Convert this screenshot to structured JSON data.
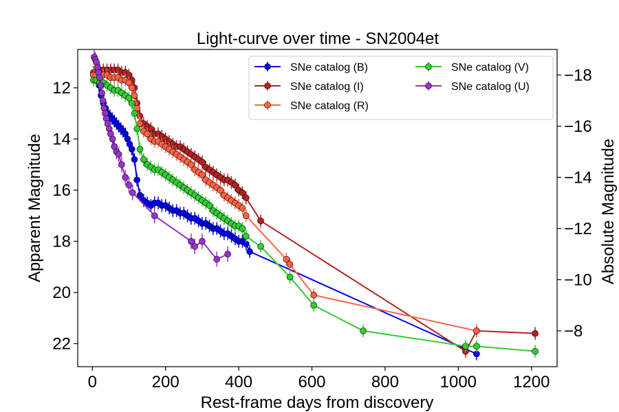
{
  "chart_data": {
    "type": "scatter",
    "title": "Light-curve over time - SN2004et",
    "xlabel": "Rest-frame days from discovery",
    "ylabel": "Apparent Magnitude",
    "y2label": "Absolute Magnitude",
    "xlim": [
      -40,
      1270
    ],
    "ylim": [
      22.9,
      10.5
    ],
    "y2lim": [
      -19.0,
      -6.6
    ],
    "y_inverted": true,
    "x_ticks": [
      0,
      200,
      400,
      600,
      800,
      1000,
      1200
    ],
    "y_ticks": [
      12,
      14,
      16,
      18,
      20,
      22
    ],
    "y2_ticks": [
      -18,
      -16,
      -14,
      -12,
      -10,
      -8
    ],
    "grid": false,
    "legend_position": "top-right",
    "error_bars": true,
    "series": [
      {
        "name": "SNe catalog (B)",
        "color": "#0000ee",
        "err": 0.25,
        "points": [
          [
            3,
            11.5
          ],
          [
            8,
            11.6
          ],
          [
            12,
            11.7
          ],
          [
            18,
            11.9
          ],
          [
            24,
            12.3
          ],
          [
            30,
            12.6
          ],
          [
            36,
            12.8
          ],
          [
            42,
            13.0
          ],
          [
            48,
            13.1
          ],
          [
            54,
            13.2
          ],
          [
            60,
            13.3
          ],
          [
            66,
            13.4
          ],
          [
            72,
            13.5
          ],
          [
            78,
            13.6
          ],
          [
            84,
            13.7
          ],
          [
            90,
            13.8
          ],
          [
            96,
            14.0
          ],
          [
            102,
            14.2
          ],
          [
            108,
            14.4
          ],
          [
            115,
            14.8
          ],
          [
            122,
            15.6
          ],
          [
            130,
            16.2
          ],
          [
            140,
            16.4
          ],
          [
            150,
            16.5
          ],
          [
            160,
            16.6
          ],
          [
            170,
            16.5
          ],
          [
            180,
            16.5
          ],
          [
            190,
            16.6
          ],
          [
            200,
            16.6
          ],
          [
            210,
            16.7
          ],
          [
            220,
            16.8
          ],
          [
            230,
            16.8
          ],
          [
            240,
            16.9
          ],
          [
            250,
            16.9
          ],
          [
            260,
            17.0
          ],
          [
            270,
            17.1
          ],
          [
            280,
            17.1
          ],
          [
            290,
            17.2
          ],
          [
            300,
            17.3
          ],
          [
            310,
            17.3
          ],
          [
            320,
            17.4
          ],
          [
            330,
            17.5
          ],
          [
            340,
            17.5
          ],
          [
            350,
            17.6
          ],
          [
            360,
            17.7
          ],
          [
            370,
            17.7
          ],
          [
            380,
            17.8
          ],
          [
            390,
            17.9
          ],
          [
            400,
            18.0
          ],
          [
            410,
            18.0
          ],
          [
            420,
            18.1
          ],
          [
            430,
            18.4
          ],
          [
            1050,
            22.4
          ]
        ]
      },
      {
        "name": "SNe catalog (I)",
        "color": "#b22222",
        "err": 0.25,
        "points": [
          [
            3,
            11.4
          ],
          [
            10,
            11.4
          ],
          [
            20,
            11.3
          ],
          [
            30,
            11.3
          ],
          [
            40,
            11.3
          ],
          [
            50,
            11.3
          ],
          [
            60,
            11.3
          ],
          [
            70,
            11.3
          ],
          [
            80,
            11.4
          ],
          [
            90,
            11.4
          ],
          [
            100,
            11.5
          ],
          [
            108,
            11.7
          ],
          [
            115,
            12.0
          ],
          [
            122,
            12.6
          ],
          [
            130,
            13.1
          ],
          [
            140,
            13.4
          ],
          [
            150,
            13.5
          ],
          [
            160,
            13.6
          ],
          [
            170,
            13.8
          ],
          [
            180,
            13.8
          ],
          [
            190,
            13.9
          ],
          [
            200,
            14.0
          ],
          [
            210,
            14.1
          ],
          [
            220,
            14.2
          ],
          [
            230,
            14.3
          ],
          [
            240,
            14.3
          ],
          [
            250,
            14.4
          ],
          [
            260,
            14.5
          ],
          [
            270,
            14.6
          ],
          [
            280,
            14.7
          ],
          [
            290,
            14.8
          ],
          [
            300,
            14.9
          ],
          [
            310,
            15.1
          ],
          [
            320,
            15.2
          ],
          [
            330,
            15.3
          ],
          [
            340,
            15.4
          ],
          [
            350,
            15.5
          ],
          [
            360,
            15.6
          ],
          [
            370,
            15.6
          ],
          [
            380,
            15.7
          ],
          [
            390,
            15.8
          ],
          [
            400,
            16.0
          ],
          [
            410,
            16.1
          ],
          [
            420,
            16.3
          ],
          [
            460,
            17.2
          ],
          [
            1020,
            22.3
          ],
          [
            1050,
            21.5
          ],
          [
            1210,
            21.6
          ]
        ]
      },
      {
        "name": "SNe catalog (R)",
        "color": "#ff6347",
        "err": 0.25,
        "points": [
          [
            3,
            11.5
          ],
          [
            10,
            11.5
          ],
          [
            20,
            11.5
          ],
          [
            30,
            11.5
          ],
          [
            40,
            11.5
          ],
          [
            50,
            11.6
          ],
          [
            60,
            11.6
          ],
          [
            70,
            11.6
          ],
          [
            80,
            11.7
          ],
          [
            90,
            11.7
          ],
          [
            100,
            11.8
          ],
          [
            108,
            12.0
          ],
          [
            115,
            12.3
          ],
          [
            122,
            12.8
          ],
          [
            130,
            13.4
          ],
          [
            140,
            13.7
          ],
          [
            150,
            13.8
          ],
          [
            160,
            14.0
          ],
          [
            170,
            14.1
          ],
          [
            180,
            14.1
          ],
          [
            190,
            14.2
          ],
          [
            200,
            14.3
          ],
          [
            210,
            14.4
          ],
          [
            220,
            14.5
          ],
          [
            230,
            14.6
          ],
          [
            240,
            14.7
          ],
          [
            250,
            14.8
          ],
          [
            260,
            14.9
          ],
          [
            270,
            15.0
          ],
          [
            280,
            15.2
          ],
          [
            290,
            15.3
          ],
          [
            300,
            15.4
          ],
          [
            310,
            15.6
          ],
          [
            320,
            15.7
          ],
          [
            330,
            15.8
          ],
          [
            340,
            15.9
          ],
          [
            350,
            16.0
          ],
          [
            360,
            16.2
          ],
          [
            370,
            16.3
          ],
          [
            380,
            16.4
          ],
          [
            390,
            16.5
          ],
          [
            400,
            16.6
          ],
          [
            410,
            16.7
          ],
          [
            420,
            17.0
          ],
          [
            530,
            18.7
          ],
          [
            540,
            18.9
          ],
          [
            605,
            20.1
          ],
          [
            1050,
            21.5
          ]
        ]
      },
      {
        "name": "SNe catalog (V)",
        "color": "#32cd32",
        "err": 0.25,
        "points": [
          [
            3,
            11.7
          ],
          [
            10,
            11.7
          ],
          [
            20,
            11.8
          ],
          [
            30,
            11.8
          ],
          [
            40,
            11.9
          ],
          [
            50,
            12.0
          ],
          [
            60,
            12.1
          ],
          [
            70,
            12.1
          ],
          [
            80,
            12.2
          ],
          [
            90,
            12.3
          ],
          [
            100,
            12.4
          ],
          [
            108,
            12.6
          ],
          [
            115,
            13.0
          ],
          [
            122,
            13.6
          ],
          [
            130,
            14.4
          ],
          [
            140,
            14.8
          ],
          [
            150,
            15.0
          ],
          [
            160,
            15.1
          ],
          [
            170,
            15.2
          ],
          [
            180,
            15.2
          ],
          [
            190,
            15.3
          ],
          [
            200,
            15.4
          ],
          [
            210,
            15.5
          ],
          [
            220,
            15.6
          ],
          [
            230,
            15.7
          ],
          [
            240,
            15.8
          ],
          [
            250,
            15.9
          ],
          [
            260,
            16.0
          ],
          [
            270,
            16.1
          ],
          [
            280,
            16.2
          ],
          [
            290,
            16.3
          ],
          [
            300,
            16.4
          ],
          [
            310,
            16.5
          ],
          [
            320,
            16.6
          ],
          [
            330,
            16.8
          ],
          [
            340,
            16.9
          ],
          [
            350,
            17.0
          ],
          [
            360,
            17.1
          ],
          [
            370,
            17.2
          ],
          [
            380,
            17.3
          ],
          [
            390,
            17.4
          ],
          [
            400,
            17.4
          ],
          [
            410,
            17.5
          ],
          [
            420,
            17.8
          ],
          [
            460,
            18.2
          ],
          [
            540,
            19.4
          ],
          [
            605,
            20.5
          ],
          [
            740,
            21.5
          ],
          [
            1020,
            22.1
          ],
          [
            1050,
            22.1
          ],
          [
            1210,
            22.3
          ]
        ]
      },
      {
        "name": "SNe catalog (U)",
        "color": "#9932cc",
        "err": 0.3,
        "points": [
          [
            5,
            10.8
          ],
          [
            8,
            10.9
          ],
          [
            11,
            11.0
          ],
          [
            14,
            11.2
          ],
          [
            17,
            11.4
          ],
          [
            20,
            11.6
          ],
          [
            23,
            11.9
          ],
          [
            26,
            12.2
          ],
          [
            29,
            12.5
          ],
          [
            32,
            12.8
          ],
          [
            35,
            13.0
          ],
          [
            38,
            13.2
          ],
          [
            42,
            13.4
          ],
          [
            46,
            13.6
          ],
          [
            50,
            13.8
          ],
          [
            55,
            14.0
          ],
          [
            60,
            14.3
          ],
          [
            66,
            14.5
          ],
          [
            72,
            14.6
          ],
          [
            80,
            15.0
          ],
          [
            90,
            15.5
          ],
          [
            100,
            15.8
          ],
          [
            110,
            16.1
          ],
          [
            170,
            17.0
          ],
          [
            270,
            18.0
          ],
          [
            280,
            18.2
          ],
          [
            300,
            18.0
          ],
          [
            340,
            18.7
          ],
          [
            370,
            18.5
          ]
        ]
      }
    ]
  }
}
